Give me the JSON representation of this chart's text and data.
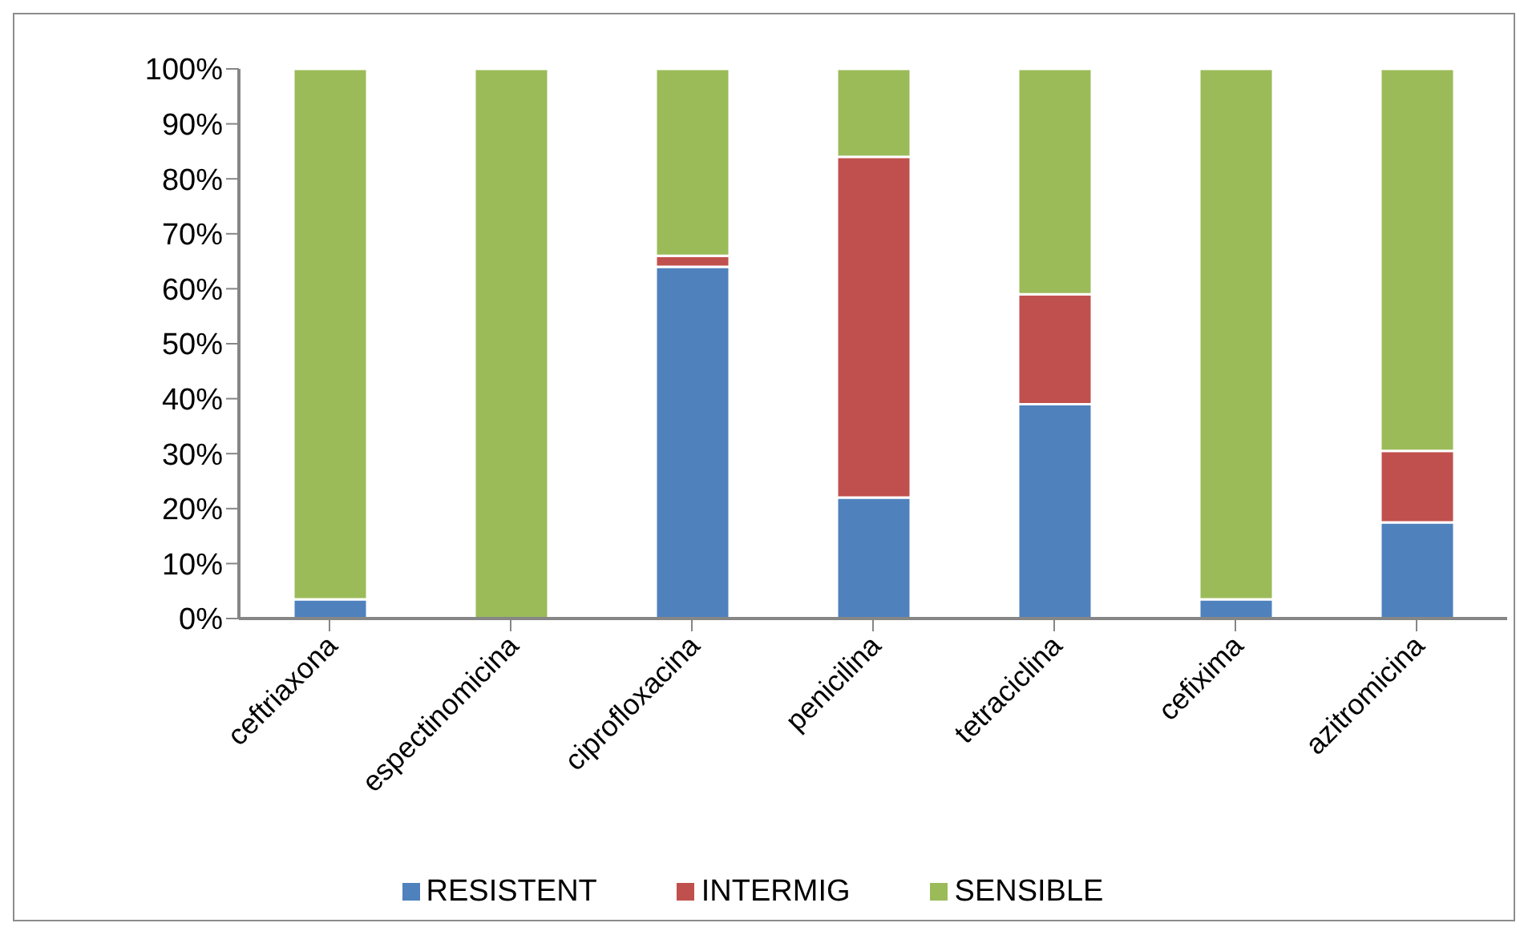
{
  "chart_data": {
    "type": "bar",
    "stacked": true,
    "categories": [
      "ceftriaxona",
      "espectinomicina",
      "ciprofloxacina",
      "penicilina",
      "tetraciclina",
      "cefixima",
      "azitromicina"
    ],
    "series": [
      {
        "name": "RESISTENT",
        "color": "#4f81bd",
        "values": [
          3.5,
          null,
          64,
          22,
          39,
          3.5,
          17.5
        ]
      },
      {
        "name": "INTERMIG",
        "color": "#c0504d",
        "values": [
          0,
          0,
          2,
          62,
          20,
          0,
          13
        ]
      },
      {
        "name": "SENSIBLE",
        "color": "#9bbb59",
        "values": [
          96.5,
          100,
          34,
          16,
          41,
          96.5,
          69.5
        ]
      }
    ],
    "ylim": [
      0,
      100
    ],
    "yticks": [
      {
        "value": 0,
        "label": "0%"
      },
      {
        "value": 10,
        "label": "10%"
      },
      {
        "value": 20,
        "label": "20%"
      },
      {
        "value": 30,
        "label": "30%"
      },
      {
        "value": 40,
        "label": "40%"
      },
      {
        "value": 50,
        "label": "50%"
      },
      {
        "value": 60,
        "label": "60%"
      },
      {
        "value": 70,
        "label": "70%"
      },
      {
        "value": 80,
        "label": "80%"
      },
      {
        "value": 90,
        "label": "90%"
      },
      {
        "value": 100,
        "label": "100%"
      }
    ],
    "grid": false,
    "legend": "bottom"
  }
}
